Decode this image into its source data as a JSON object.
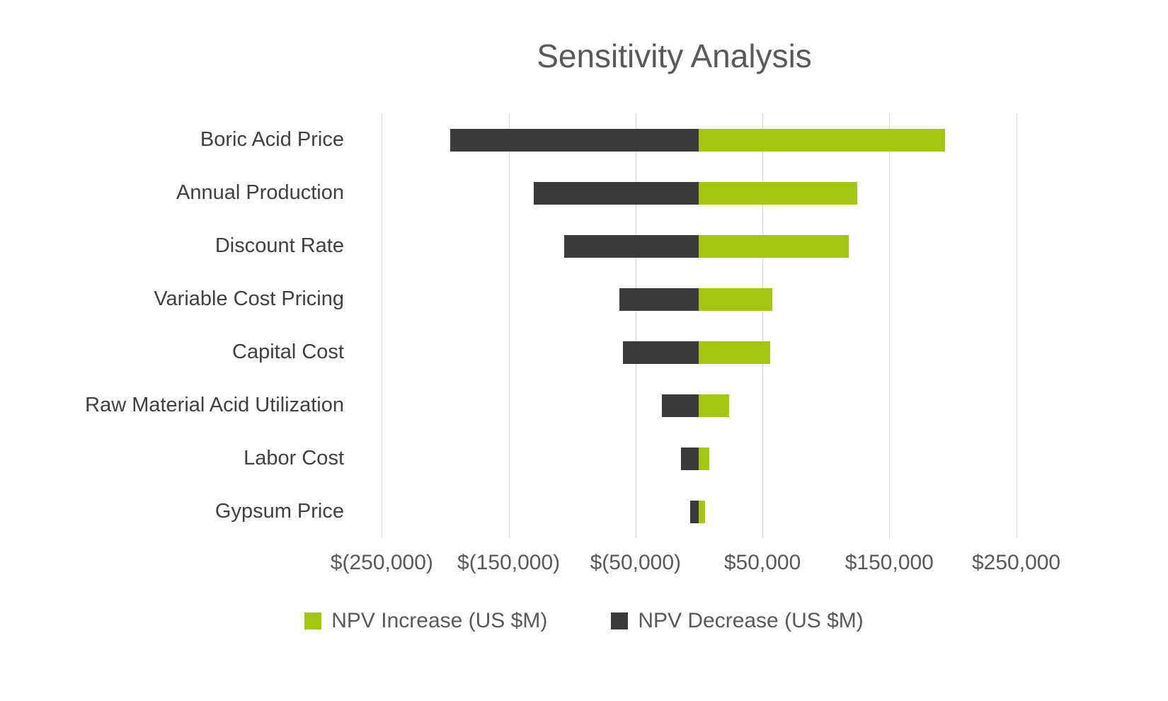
{
  "chart_data": {
    "type": "bar",
    "orientation": "horizontal-diverging-tornado",
    "title": "Sensitivity Analysis",
    "categories": [
      "Boric Acid Price",
      "Annual Production",
      "Discount Rate",
      "Variable Cost Pricing",
      "Capital Cost",
      "Raw Material Acid Utilization",
      "Labor Cost",
      "Gypsum Price"
    ],
    "series": [
      {
        "id": "npv-increase",
        "name": "NPV Increase (US $M)",
        "color": "#a3c613",
        "values": [
          194000,
          125000,
          118000,
          58000,
          56000,
          24000,
          8000,
          5000
        ]
      },
      {
        "id": "npv-decrease",
        "name": "NPV Decrease (US $M)",
        "color": "#3b3b3b",
        "values": [
          -196000,
          -130000,
          -106000,
          -63000,
          -60000,
          -29000,
          -14000,
          -7000
        ]
      }
    ],
    "xticks": {
      "labels": [
        "$(250,000)",
        "$(150,000)",
        "$(50,000)",
        "$50,000",
        "$150,000",
        "$250,000"
      ],
      "values": [
        -250000,
        -150000,
        -50000,
        50000,
        150000,
        250000
      ]
    },
    "xlim": [
      -258000,
      272000
    ],
    "xlabel": "",
    "ylabel": "",
    "grid": true,
    "legend_position": "bottom",
    "colors": {
      "background": "#ffffff",
      "gridline": "#d9d9d9",
      "title_text": "#595959",
      "axis_text": "#595959",
      "category_text": "#404040"
    }
  }
}
